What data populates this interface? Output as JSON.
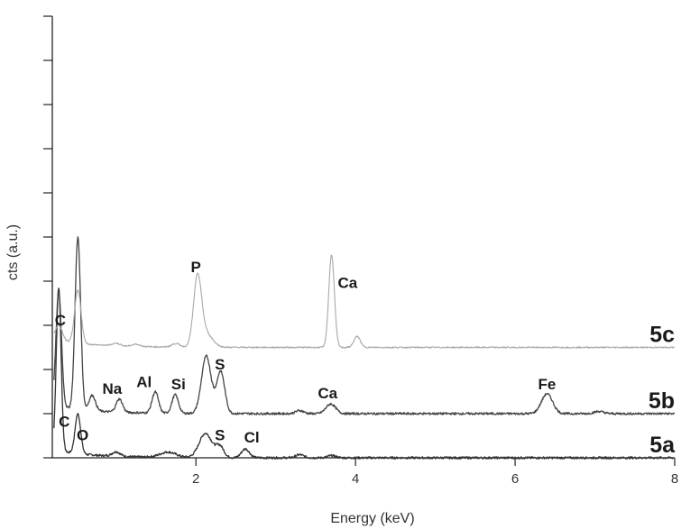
{
  "chart_data": {
    "type": "line",
    "title": "",
    "xlabel": "Energy (keV)",
    "ylabel": "cts (a.u.)",
    "xlim": [
      0.2,
      8.0
    ],
    "ylim": [
      0,
      10
    ],
    "x_ticks": [
      2,
      4,
      6,
      8
    ],
    "x_tick_labels": [
      "2",
      "4",
      "6",
      "8"
    ],
    "y_ticks": [
      0,
      1,
      2,
      3,
      4,
      5,
      6,
      7,
      8,
      9,
      10
    ],
    "grid": false,
    "series": [
      {
        "name": "5a",
        "color": "#333333",
        "baseline": 0.0,
        "peaks": [
          [
            0.28,
            3.7,
            0.03
          ],
          [
            0.52,
            0.9,
            0.035
          ],
          [
            1.0,
            0.1,
            0.05
          ],
          [
            1.65,
            0.12,
            0.1
          ],
          [
            2.12,
            0.55,
            0.08
          ],
          [
            2.3,
            0.25,
            0.05
          ],
          [
            2.62,
            0.2,
            0.05
          ],
          [
            3.3,
            0.07,
            0.05
          ],
          [
            3.7,
            0.05,
            0.05
          ]
        ],
        "labels": [
          {
            "text": "C",
            "x": 0.35,
            "y": 0.7
          },
          {
            "text": "O",
            "x": 0.58,
            "y": 0.4
          },
          {
            "text": "S",
            "x": 2.3,
            "y": 0.4
          },
          {
            "text": "Cl",
            "x": 2.7,
            "y": 0.35
          }
        ],
        "tag": "5a"
      },
      {
        "name": "5b",
        "color": "#444444",
        "baseline": 1.0,
        "peaks": [
          [
            0.28,
            2.6,
            0.035
          ],
          [
            0.52,
            3.9,
            0.035
          ],
          [
            0.7,
            0.35,
            0.04
          ],
          [
            1.04,
            0.3,
            0.04
          ],
          [
            1.49,
            0.48,
            0.04
          ],
          [
            1.74,
            0.42,
            0.04
          ],
          [
            2.13,
            1.3,
            0.06
          ],
          [
            2.31,
            0.95,
            0.05
          ],
          [
            3.3,
            0.07,
            0.05
          ],
          [
            3.69,
            0.22,
            0.06
          ],
          [
            6.4,
            0.45,
            0.07
          ],
          [
            7.05,
            0.05,
            0.06
          ]
        ],
        "labels": [
          {
            "text": "Na",
            "x": 0.95,
            "y": 1.45
          },
          {
            "text": "Al",
            "x": 1.35,
            "y": 1.6
          },
          {
            "text": "Si",
            "x": 1.78,
            "y": 1.55
          },
          {
            "text": "S",
            "x": 2.3,
            "y": 2.0
          },
          {
            "text": "Ca",
            "x": 3.65,
            "y": 1.35
          },
          {
            "text": "Fe",
            "x": 6.4,
            "y": 1.55
          }
        ],
        "tag": "5b"
      },
      {
        "name": "5c",
        "color": "#a8a8a8",
        "baseline": 2.5,
        "peaks": [
          [
            0.28,
            0.35,
            0.045
          ],
          [
            0.52,
            1.2,
            0.04
          ],
          [
            1.0,
            0.06,
            0.05
          ],
          [
            1.25,
            0.05,
            0.05
          ],
          [
            1.75,
            0.08,
            0.05
          ],
          [
            2.02,
            1.55,
            0.05
          ],
          [
            2.13,
            0.3,
            0.08
          ],
          [
            3.7,
            2.1,
            0.035
          ],
          [
            4.02,
            0.25,
            0.04
          ]
        ],
        "labels": [
          {
            "text": "C",
            "x": 0.3,
            "y": 3.0
          },
          {
            "text": "P",
            "x": 2.0,
            "y": 4.2
          },
          {
            "text": "Ca",
            "x": 3.9,
            "y": 3.85
          }
        ],
        "tag": "5c"
      }
    ]
  }
}
